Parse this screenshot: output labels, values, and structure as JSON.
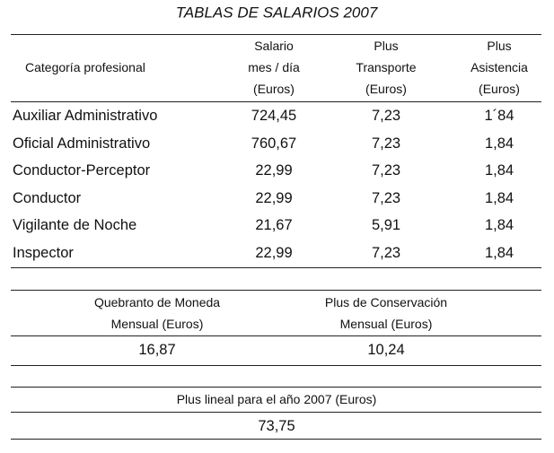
{
  "title": "TABLAS DE SALARIOS 2007",
  "salary_table": {
    "header": [
      [
        "Categoría profesional"
      ],
      [
        "Salario",
        "mes / día",
        "(Euros)"
      ],
      [
        "Plus",
        "Transporte",
        "(Euros)"
      ],
      [
        "Plus",
        "Asistencia",
        "(Euros)"
      ]
    ],
    "rows": [
      [
        "Auxiliar Administrativo",
        "724,45",
        "7,23",
        "1´84"
      ],
      [
        "Oficial Administrativo",
        "760,67",
        "7,23",
        "1,84"
      ],
      [
        "Conductor-Perceptor",
        "22,99",
        "7,23",
        "1,84"
      ],
      [
        "Conductor",
        "22,99",
        "7,23",
        "1,84"
      ],
      [
        "Vigilante de Noche",
        "21,67",
        "5,91",
        "1,84"
      ],
      [
        "Inspector",
        "22,99",
        "7,23",
        "1,84"
      ]
    ]
  },
  "allowance_table": {
    "header": [
      [
        "Quebranto de Moneda",
        "Mensual (Euros)"
      ],
      [
        "Plus de Conservación",
        "Mensual (Euros)"
      ]
    ],
    "values": [
      "16,87",
      "10,24"
    ]
  },
  "linear_table": {
    "header": "Plus lineal para el año 2007 (Euros)",
    "value": "73,75"
  }
}
